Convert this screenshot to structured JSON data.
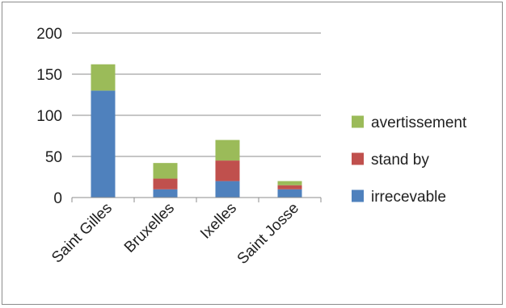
{
  "chart_data": {
    "type": "bar",
    "stacked": true,
    "categories": [
      "Saint Gilles",
      "Bruxelles",
      "Ixelles",
      "Saint Josse"
    ],
    "series": [
      {
        "name": "irrecevable",
        "color": "#4f81bd",
        "values": [
          130,
          10,
          20,
          10
        ]
      },
      {
        "name": "stand by",
        "color": "#c0504d",
        "values": [
          0,
          13,
          25,
          5
        ]
      },
      {
        "name": "avertissement",
        "color": "#9bbb59",
        "values": [
          32,
          19,
          25,
          5
        ]
      }
    ],
    "ylim": [
      0,
      200
    ],
    "yticks": [
      0,
      50,
      100,
      150,
      200
    ],
    "gridlines": true,
    "legend_position": "right",
    "legend_order": [
      "avertissement",
      "stand by",
      "irrecevable"
    ]
  }
}
